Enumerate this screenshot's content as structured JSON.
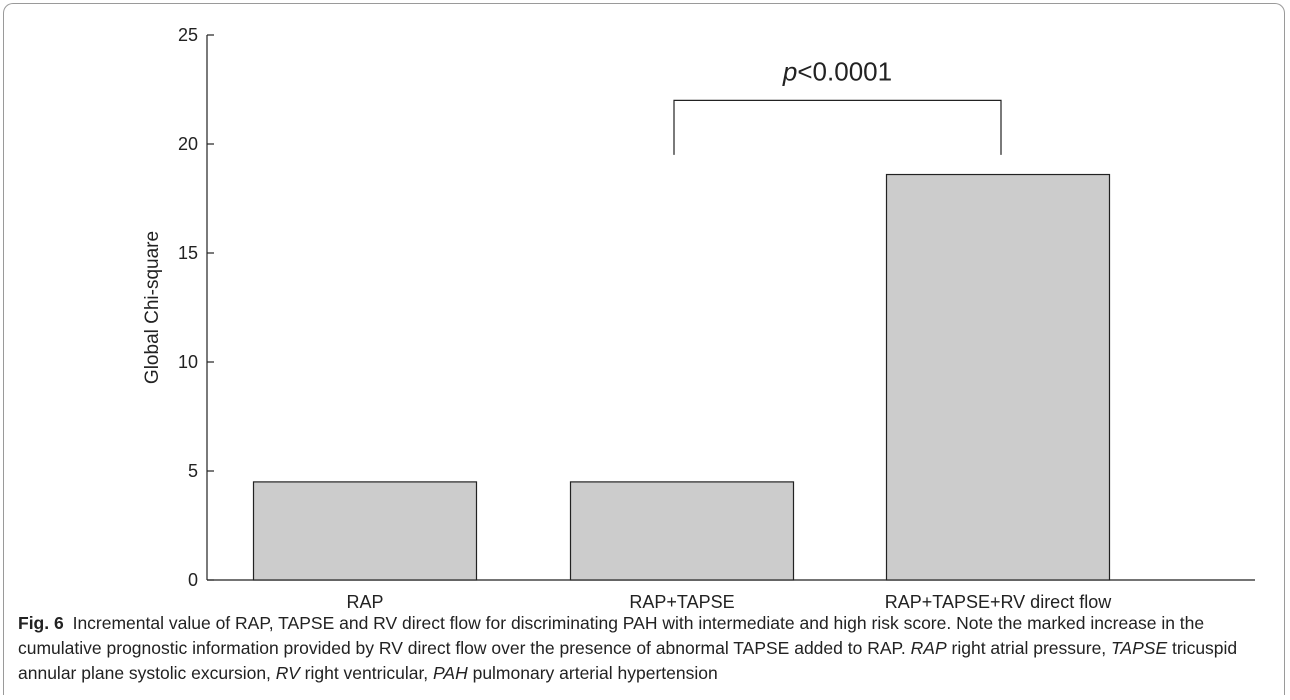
{
  "chart_data": {
    "type": "bar",
    "categories": [
      "RAP",
      "RAP+TAPSE",
      "RAP+TAPSE+RV direct flow"
    ],
    "values": [
      4.5,
      4.5,
      18.6
    ],
    "ylabel": "Global Chi-square",
    "xlabel": "",
    "ylim": [
      0,
      25
    ],
    "yticks": [
      0,
      5,
      10,
      15,
      20,
      25
    ],
    "grid": false,
    "bar_color": "#cccccc",
    "annotation": {
      "text": "p<0.0001",
      "between": [
        "RAP+TAPSE",
        "RAP+TAPSE+RV direct flow"
      ]
    }
  },
  "caption": {
    "label": "Fig. 6",
    "text": "Incremental value of RAP, TAPSE and RV direct flow for discriminating PAH with intermediate and high risk score. Note the marked increase in the cumulative prognostic information provided by RV direct flow over the presence of abnormal TAPSE added to RAP.",
    "abbreviations": [
      {
        "term": "RAP",
        "definition": "right atrial pressure,"
      },
      {
        "term": "TAPSE",
        "definition": "tricuspid annular plane systolic excursion,"
      },
      {
        "term": "RV",
        "definition": "right ventricular,"
      },
      {
        "term": "PAH",
        "definition": "pulmonary arterial hypertension"
      }
    ]
  }
}
